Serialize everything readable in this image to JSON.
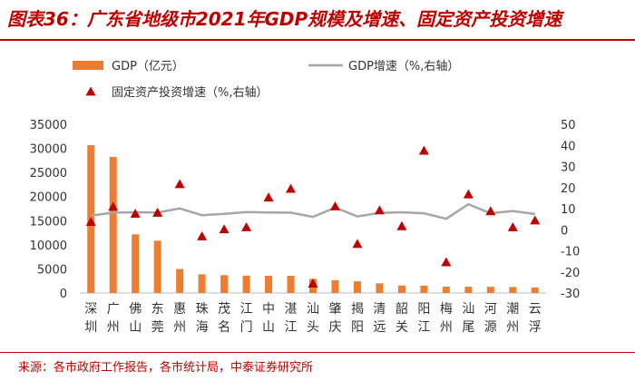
{
  "title": "图表36：广东省地级市2021年GDP规模及增速、固定资产投资增速",
  "source": "来源：各市政府工作报告，各市统计局，中泰证券研究所",
  "chart_data": {
    "type": "bar+line+scatter",
    "categories": [
      "深圳",
      "广州",
      "佛山",
      "东莞",
      "惠州",
      "珠海",
      "茂名",
      "江门",
      "中山",
      "湛江",
      "汕头",
      "肇庆",
      "揭阳",
      "清远",
      "韶关",
      "阳江",
      "梅州",
      "汕尾",
      "河源",
      "潮州",
      "云浮"
    ],
    "series": [
      {
        "name": "GDP（亿元）",
        "axis": "left",
        "kind": "bar",
        "color": "#ed7d31",
        "values": [
          30665,
          28232,
          12157,
          10855,
          4977,
          3882,
          3699,
          3601,
          3566,
          3560,
          2929,
          2650,
          2421,
          2007,
          1553,
          1516,
          1308,
          1289,
          1274,
          1244,
          1139
        ]
      },
      {
        "name": "GDP增速（%,右轴）",
        "axis": "right",
        "kind": "line",
        "color": "#a6a6a6",
        "values": [
          6.7,
          8.1,
          8.3,
          8.2,
          10.1,
          6.9,
          7.5,
          8.4,
          8.2,
          8.1,
          6.1,
          10.5,
          6.3,
          8.0,
          8.3,
          7.8,
          5.2,
          12.1,
          7.8,
          8.9,
          7.4
        ]
      },
      {
        "name": "固定资产投资增速（%,右轴）",
        "axis": "right",
        "kind": "scatter",
        "color": "#c00000",
        "values": [
          3.7,
          10.9,
          7.6,
          8.1,
          21.6,
          -3.1,
          0.2,
          1.2,
          15.3,
          19.4,
          -25.5,
          11.1,
          -6.7,
          9.2,
          1.7,
          37.5,
          -15.4,
          16.8,
          8.8,
          1.2,
          4.4
        ]
      }
    ],
    "left_axis": {
      "min": 0,
      "max": 35000,
      "step": 5000
    },
    "right_axis": {
      "min": -30,
      "max": 50,
      "step": 10
    }
  }
}
